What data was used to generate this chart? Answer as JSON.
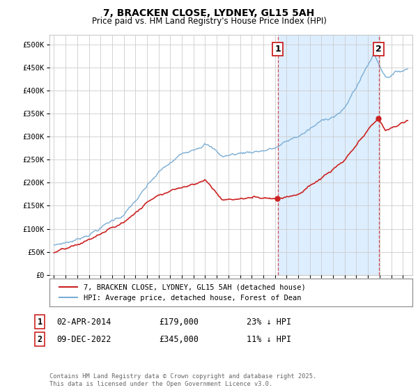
{
  "title": "7, BRACKEN CLOSE, LYDNEY, GL15 5AH",
  "subtitle": "Price paid vs. HM Land Registry's House Price Index (HPI)",
  "xlim_start": 1994.6,
  "xlim_end": 2025.8,
  "ylim": [
    0,
    520000
  ],
  "yticks": [
    0,
    50000,
    100000,
    150000,
    200000,
    250000,
    300000,
    350000,
    400000,
    450000,
    500000
  ],
  "ytick_labels": [
    "£0",
    "£50K",
    "£100K",
    "£150K",
    "£200K",
    "£250K",
    "£300K",
    "£350K",
    "£400K",
    "£450K",
    "£500K"
  ],
  "hpi_color": "#7aadd4",
  "price_color": "#cc2222",
  "shade_color": "#ddeeff",
  "transaction1_x": 2014.25,
  "transaction1_y": 179000,
  "transaction1_label": "1",
  "transaction1_date": "02-APR-2014",
  "transaction1_price": "£179,000",
  "transaction1_pct": "23% ↓ HPI",
  "transaction2_x": 2022.93,
  "transaction2_y": 345000,
  "transaction2_label": "2",
  "transaction2_date": "09-DEC-2022",
  "transaction2_price": "£345,000",
  "transaction2_pct": "11% ↓ HPI",
  "legend_line1": "7, BRACKEN CLOSE, LYDNEY, GL15 5AH (detached house)",
  "legend_line2": "HPI: Average price, detached house, Forest of Dean",
  "footer": "Contains HM Land Registry data © Crown copyright and database right 2025.\nThis data is licensed under the Open Government Licence v3.0.",
  "background_color": "#ffffff",
  "grid_color": "#cccccc"
}
